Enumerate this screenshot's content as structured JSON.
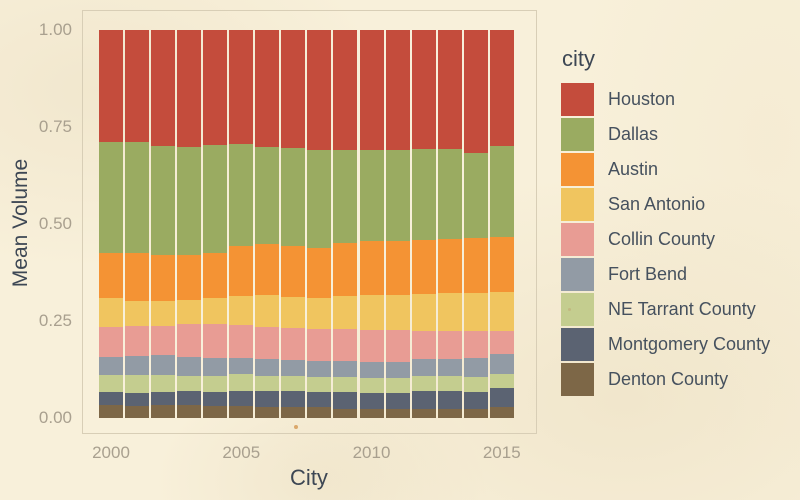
{
  "figure": {
    "background": "#f8f0da",
    "panel_border_color": "#d8ceb6"
  },
  "axes": {
    "x_title": "City",
    "y_title": "Mean Volume",
    "x_ticks": [
      {
        "label": "2000",
        "year": 2000
      },
      {
        "label": "2005",
        "year": 2005
      },
      {
        "label": "2010",
        "year": 2010
      },
      {
        "label": "2015",
        "year": 2015
      }
    ],
    "y_ticks": [
      {
        "label": "1.00",
        "value": 1.0
      },
      {
        "label": "0.75",
        "value": 0.75
      },
      {
        "label": "0.50",
        "value": 0.5
      },
      {
        "label": "0.25",
        "value": 0.25
      },
      {
        "label": "0.00",
        "value": 0.0
      }
    ]
  },
  "legend": {
    "title": "city",
    "position": "right"
  },
  "chart_data": {
    "type": "bar",
    "variant": "stacked-normalized",
    "title": "",
    "xlabel": "City",
    "ylabel": "Mean Volume",
    "legend_title": "city",
    "grid": false,
    "ylim": [
      0,
      1
    ],
    "x_years": [
      2000,
      2001,
      2002,
      2003,
      2004,
      2005,
      2006,
      2007,
      2008,
      2009,
      2010,
      2011,
      2012,
      2013,
      2014,
      2015
    ],
    "stack_order_note": "series listed top-of-bar first; bars stack bottom-up in reverse order",
    "series": [
      {
        "name": "Houston",
        "color": "#c44c3c",
        "values": [
          0.289,
          0.289,
          0.298,
          0.302,
          0.296,
          0.293,
          0.302,
          0.305,
          0.309,
          0.31,
          0.308,
          0.309,
          0.307,
          0.307,
          0.318,
          0.298
        ]
      },
      {
        "name": "Dallas",
        "color": "#9aab61",
        "values": [
          0.286,
          0.285,
          0.283,
          0.279,
          0.279,
          0.265,
          0.249,
          0.252,
          0.253,
          0.239,
          0.237,
          0.234,
          0.233,
          0.232,
          0.218,
          0.236
        ]
      },
      {
        "name": "Austin",
        "color": "#f49334",
        "values": [
          0.116,
          0.125,
          0.117,
          0.114,
          0.116,
          0.128,
          0.133,
          0.132,
          0.129,
          0.137,
          0.137,
          0.139,
          0.14,
          0.139,
          0.142,
          0.141
        ]
      },
      {
        "name": "San Antonio",
        "color": "#f0c55f",
        "values": [
          0.074,
          0.063,
          0.064,
          0.064,
          0.068,
          0.075,
          0.082,
          0.079,
          0.079,
          0.085,
          0.091,
          0.091,
          0.095,
          0.097,
          0.099,
          0.1
        ]
      },
      {
        "name": "Collin County",
        "color": "#e89c94",
        "values": [
          0.077,
          0.078,
          0.076,
          0.084,
          0.086,
          0.084,
          0.083,
          0.082,
          0.083,
          0.082,
          0.083,
          0.084,
          0.072,
          0.072,
          0.068,
          0.06
        ]
      },
      {
        "name": "Fort Bend",
        "color": "#929ba5",
        "values": [
          0.046,
          0.05,
          0.05,
          0.049,
          0.047,
          0.042,
          0.043,
          0.042,
          0.042,
          0.042,
          0.041,
          0.04,
          0.045,
          0.045,
          0.05,
          0.052
        ]
      },
      {
        "name": "NE Tarrant County",
        "color": "#c4cd8f",
        "values": [
          0.045,
          0.045,
          0.045,
          0.039,
          0.041,
          0.043,
          0.039,
          0.039,
          0.038,
          0.038,
          0.038,
          0.038,
          0.039,
          0.039,
          0.038,
          0.037
        ]
      },
      {
        "name": "Montgomery County",
        "color": "#5b6372",
        "values": [
          0.034,
          0.034,
          0.034,
          0.036,
          0.036,
          0.039,
          0.041,
          0.042,
          0.04,
          0.043,
          0.041,
          0.043,
          0.045,
          0.045,
          0.045,
          0.049
        ]
      },
      {
        "name": "Denton County",
        "color": "#7d6747",
        "values": [
          0.033,
          0.031,
          0.033,
          0.033,
          0.031,
          0.031,
          0.028,
          0.027,
          0.027,
          0.024,
          0.024,
          0.022,
          0.024,
          0.024,
          0.022,
          0.027
        ]
      }
    ]
  }
}
